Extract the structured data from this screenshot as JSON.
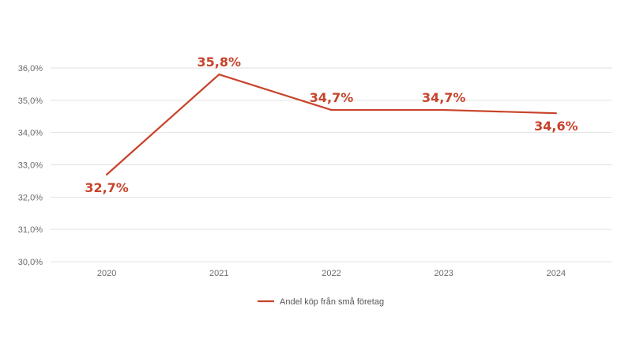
{
  "chart_data": {
    "type": "line",
    "title": "",
    "xlabel": "",
    "ylabel": "",
    "categories": [
      "2020",
      "2021",
      "2022",
      "2023",
      "2024"
    ],
    "series": [
      {
        "name": "Andel köp från små företag",
        "values": [
          32.7,
          35.8,
          34.7,
          34.7,
          34.6
        ],
        "data_labels": [
          "32,7%",
          "35,8%",
          "34,7%",
          "34,7%",
          "34,6%"
        ],
        "color": "#c8432b"
      }
    ],
    "ylim": [
      30,
      36
    ],
    "y_ticks": [
      30,
      31,
      32,
      33,
      34,
      35,
      36
    ],
    "y_tick_labels": [
      "30,0%",
      "31,0%",
      "32,0%",
      "33,0%",
      "34,0%",
      "35,0%",
      "36,0%"
    ],
    "grid": true,
    "legend_position": "bottom-center"
  }
}
